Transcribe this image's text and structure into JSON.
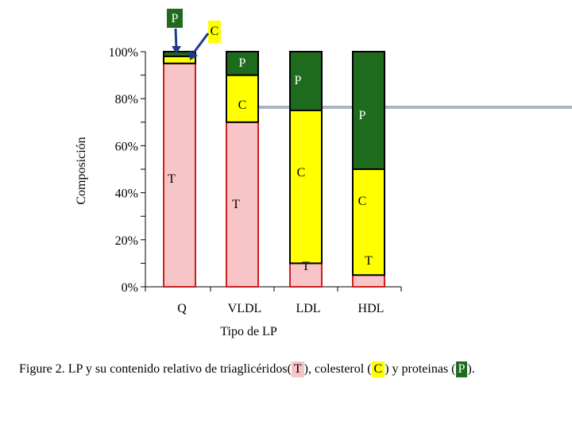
{
  "chart_data": {
    "type": "bar",
    "stacked": true,
    "normalized": true,
    "categories": [
      "Q",
      "VLDL",
      "LDL",
      "HDL"
    ],
    "series": [
      {
        "name": "T",
        "color": "#f7c4c8",
        "values": [
          95,
          70,
          10,
          5
        ]
      },
      {
        "name": "C",
        "color": "#ffff00",
        "values": [
          3,
          20,
          65,
          45
        ]
      },
      {
        "name": "P",
        "color": "#1e6b1e",
        "values": [
          2,
          10,
          25,
          50
        ]
      }
    ],
    "xlabel": "Tipo de LP",
    "ylabel": "Composición",
    "ylim": [
      0,
      100
    ],
    "yticks": [
      "0%",
      "20%",
      "40%",
      "60%",
      "80%",
      "100%"
    ],
    "q_callouts": [
      "P",
      "C"
    ]
  },
  "caption": {
    "figure_label": "Figure 2.",
    "text_before_t": "LP y su contenido relativo de  triaglicéridos(",
    "t_letter": "T",
    "text_before_c": "), colesterol (",
    "c_letter": "C",
    "text_before_p": ") y proteinas (",
    "p_letter": "P",
    "text_end": ")."
  }
}
